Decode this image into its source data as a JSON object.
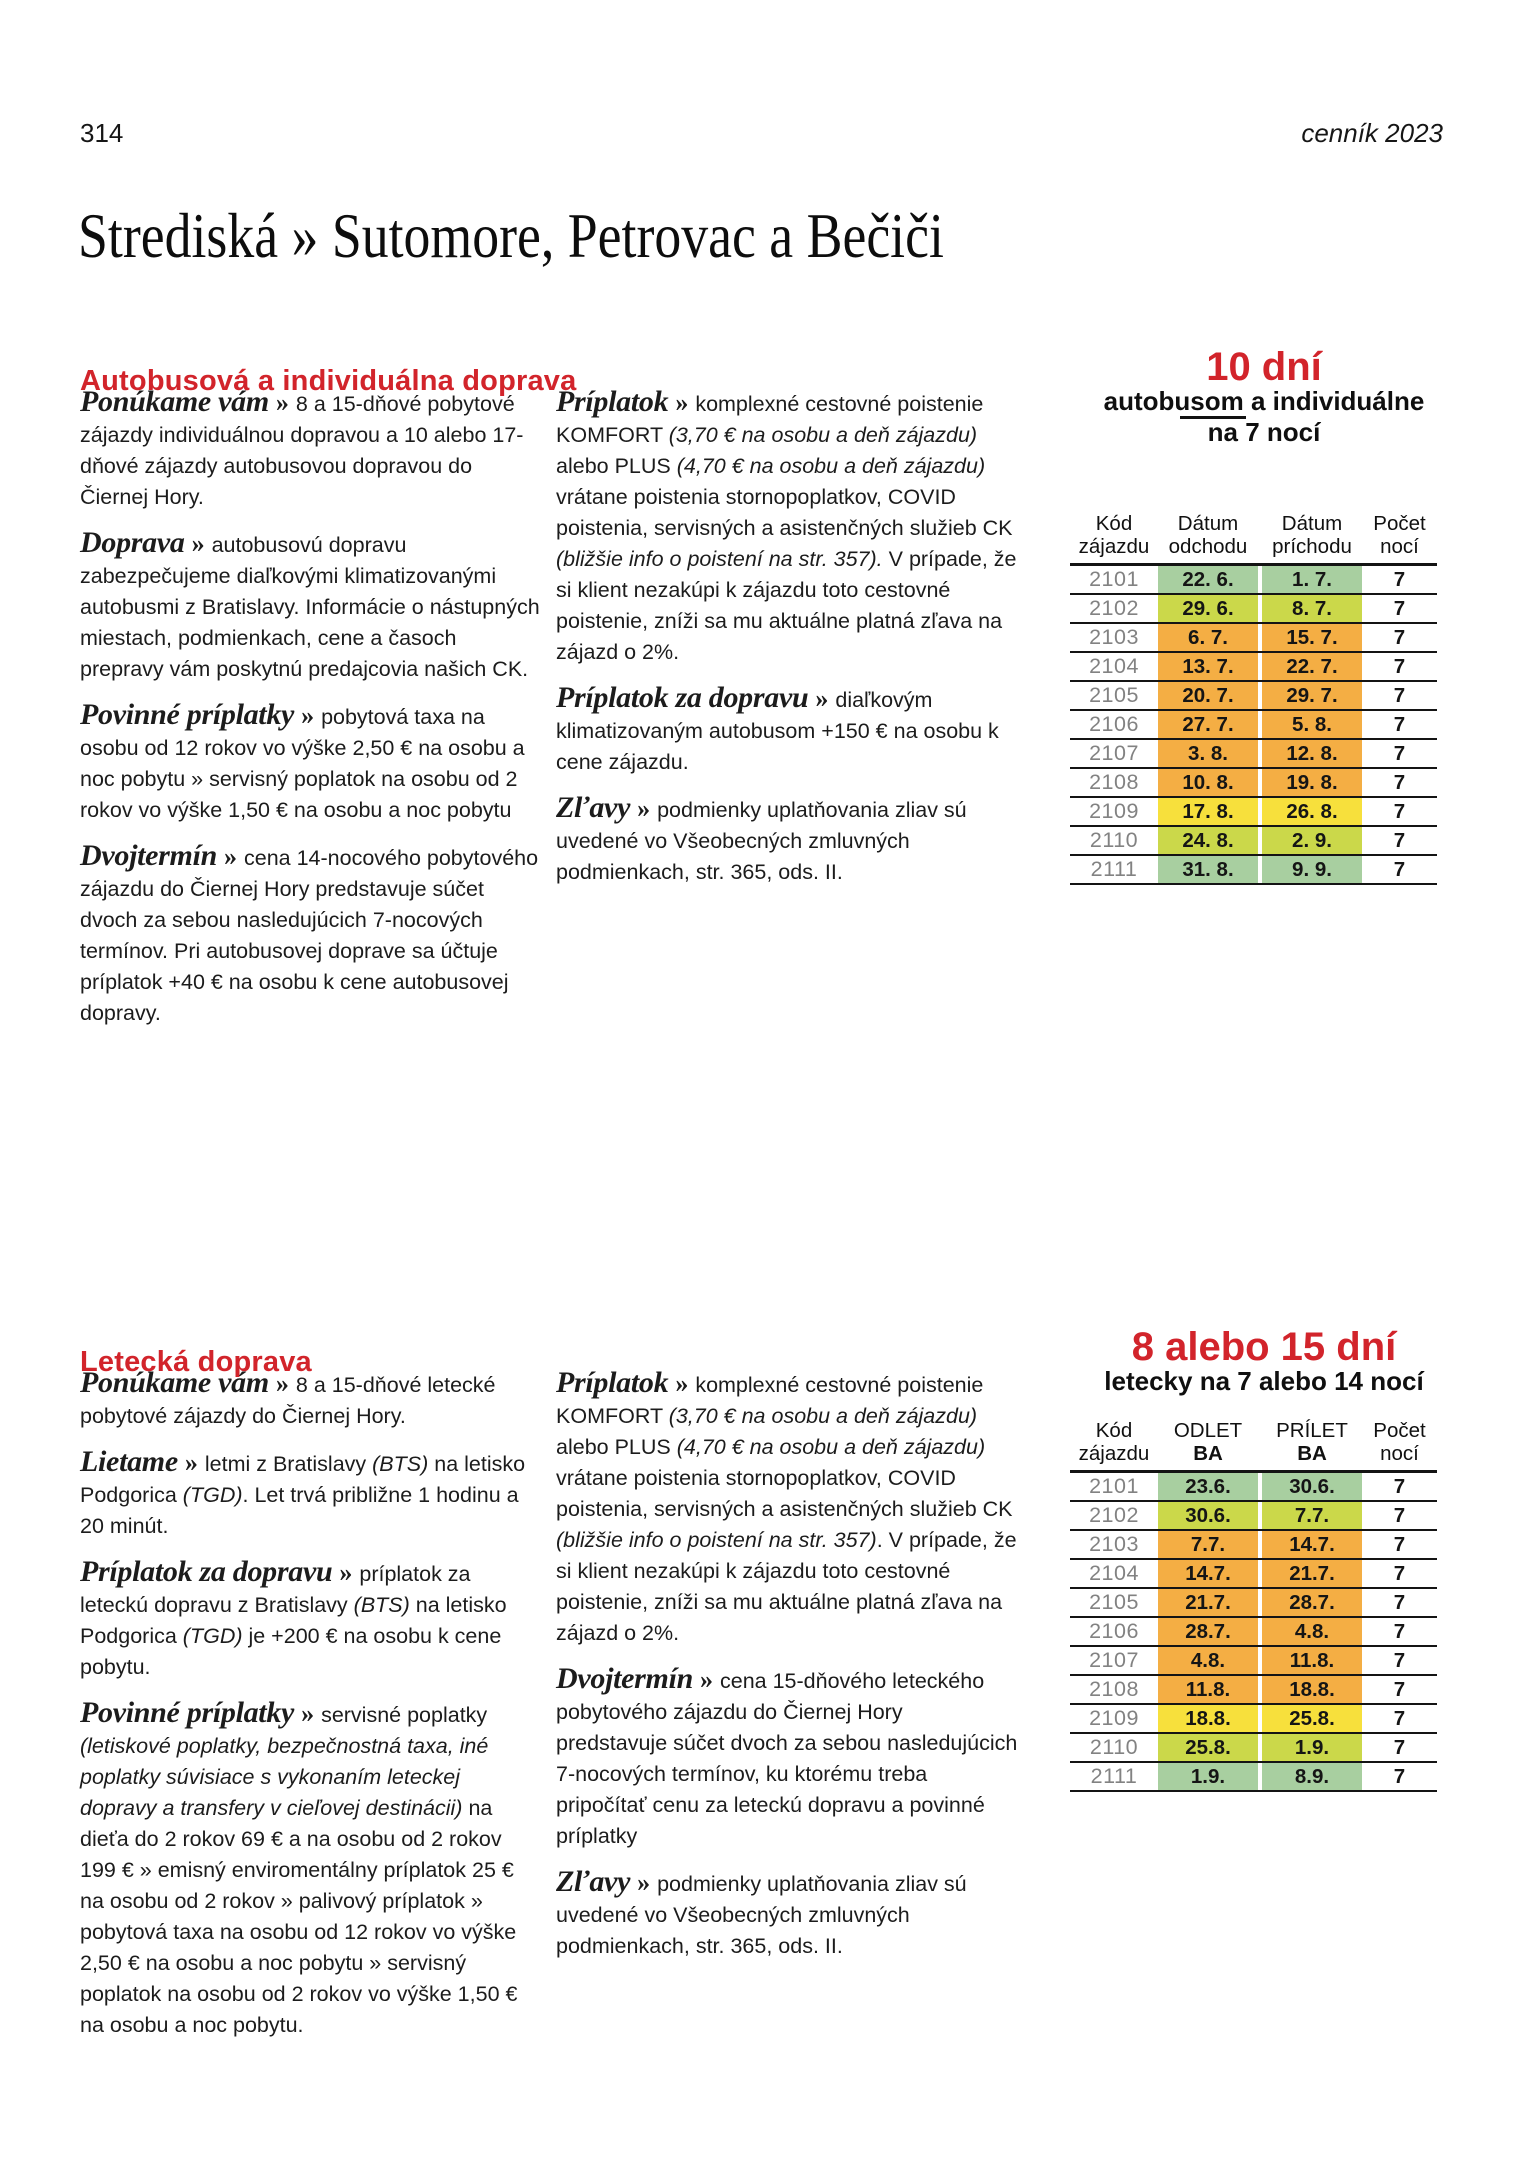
{
  "page": {
    "number": "314",
    "edition": "cenník 2023",
    "title": "Strediská » Sutomore, Petrovac a Bečiči"
  },
  "colors": {
    "red": "#d2242b",
    "green": "#a8cfa0",
    "lime": "#cbd84a",
    "orange": "#f4ae44",
    "yellow": "#f7e03c"
  },
  "sections": [
    {
      "heading": "Autobusová a individuálna doprava",
      "columns": [
        [
          {
            "head": "Ponúkame vám",
            "body": [
              {
                "t": "8 a 15-dňové pobytové zájazdy individuálnou dopravou a 10 alebo 17-dňové zájazdy autobusovou dopravou do Čiernej Hory.",
                "i": false
              }
            ]
          },
          {
            "head": "Doprava",
            "body": [
              {
                "t": "autobusovú dopravu zabezpečujeme diaľkovými klimatizovanými autobusmi z Bratislavy. Informácie o nástupných miestach, podmienkach, cene a časoch prepravy vám poskytnú predajcovia našich CK.",
                "i": false
              }
            ]
          },
          {
            "head": "Povinné príplatky",
            "body": [
              {
                "t": "pobytová taxa na osobu od 12 rokov vo výške 2,50 € na osobu a noc pobytu » servisný poplatok na osobu od 2 rokov vo výške 1,50 € na osobu a noc pobytu",
                "i": false
              }
            ]
          },
          {
            "head": "Dvojtermín",
            "body": [
              {
                "t": "cena 14-nocového pobytového zájazdu do Čiernej Hory predstavuje súčet dvoch za sebou nasledujúcich 7-nocových termínov. Pri autobusovej doprave sa účtuje príplatok +40 € na osobu k cene autobusovej dopravy.",
                "i": false
              }
            ]
          }
        ],
        [
          {
            "head": "Príplatok",
            "body": [
              {
                "t": "komplexné cestovné poistenie KOMFORT ",
                "i": false
              },
              {
                "t": "(3,70 € na osobu a deň zájazdu)",
                "i": true
              },
              {
                "t": " alebo PLUS ",
                "i": false
              },
              {
                "t": "(4,70 € na osobu a deň zájazdu)",
                "i": true
              },
              {
                "t": " vrátane poistenia stornopoplatkov, COVID poistenia, servisných a asistenčných služieb CK ",
                "i": false
              },
              {
                "t": "(bližšie info o poistení na str. 357).",
                "i": true
              },
              {
                "t": " V prípade, že si klient nezakúpi k zájazdu toto cestovné poistenie, zníži sa mu aktuálne platná zľava na zájazd o 2%.",
                "i": false
              }
            ]
          },
          {
            "head": "Príplatok za dopravu",
            "body": [
              {
                "t": "diaľkovým klimatizovaným autobusom +150 € na osobu k cene zájazdu.",
                "i": false
              }
            ]
          },
          {
            "head": "Zľavy",
            "body": [
              {
                "t": "podmienky uplatňovania zliav sú uvedené vo Všeobecných zmluvných podmienkach, str. 365, ods. II.",
                "i": false
              }
            ]
          }
        ]
      ],
      "panel": {
        "title": "10 dní",
        "subtitle_lines": [
          "autobusom a individuálne",
          "na 7 nocí"
        ],
        "table": {
          "headers": [
            {
              "l1": "Kód",
              "l2": "zájazdu",
              "b2": false
            },
            {
              "l1": "Dátum",
              "l2": "odchodu",
              "b2": false
            },
            {
              "l1": "Dátum",
              "l2": "príchodu",
              "b2": false
            },
            {
              "l1": "Počet",
              "l2": "nocí",
              "b2": false
            }
          ],
          "rows": [
            {
              "code": "2101",
              "dep": "22. 6.",
              "arr": "1. 7.",
              "nights": "7",
              "color": "green"
            },
            {
              "code": "2102",
              "dep": "29. 6.",
              "arr": "8. 7.",
              "nights": "7",
              "color": "lime"
            },
            {
              "code": "2103",
              "dep": "6. 7.",
              "arr": "15. 7.",
              "nights": "7",
              "color": "orange"
            },
            {
              "code": "2104",
              "dep": "13. 7.",
              "arr": "22. 7.",
              "nights": "7",
              "color": "orange"
            },
            {
              "code": "2105",
              "dep": "20. 7.",
              "arr": "29. 7.",
              "nights": "7",
              "color": "orange"
            },
            {
              "code": "2106",
              "dep": "27. 7.",
              "arr": "5. 8.",
              "nights": "7",
              "color": "orange"
            },
            {
              "code": "2107",
              "dep": "3. 8.",
              "arr": "12. 8.",
              "nights": "7",
              "color": "orange"
            },
            {
              "code": "2108",
              "dep": "10. 8.",
              "arr": "19. 8.",
              "nights": "7",
              "color": "orange"
            },
            {
              "code": "2109",
              "dep": "17. 8.",
              "arr": "26. 8.",
              "nights": "7",
              "color": "yellow"
            },
            {
              "code": "2110",
              "dep": "24. 8.",
              "arr": "2. 9.",
              "nights": "7",
              "color": "lime"
            },
            {
              "code": "2111",
              "dep": "31. 8.",
              "arr": "9. 9.",
              "nights": "7",
              "color": "green"
            }
          ]
        }
      }
    },
    {
      "heading": "Letecká doprava",
      "columns": [
        [
          {
            "head": "Ponúkame vám",
            "body": [
              {
                "t": "8 a 15-dňové letecké pobytové zájazdy do Čiernej Hory.",
                "i": false
              }
            ]
          },
          {
            "head": "Lietame",
            "body": [
              {
                "t": "letmi z Bratislavy ",
                "i": false
              },
              {
                "t": "(BTS)",
                "i": true
              },
              {
                "t": " na letisko Podgorica ",
                "i": false
              },
              {
                "t": "(TGD)",
                "i": true
              },
              {
                "t": ". Let trvá približne 1 hodinu a 20 minút.",
                "i": false
              }
            ]
          },
          {
            "head": "Príplatok za dopravu",
            "body": [
              {
                "t": "príplatok za leteckú dopravu z Bratislavy ",
                "i": false
              },
              {
                "t": "(BTS)",
                "i": true
              },
              {
                "t": " na letisko Podgorica ",
                "i": false
              },
              {
                "t": "(TGD)",
                "i": true
              },
              {
                "t": " je +200 € na osobu k cene pobytu.",
                "i": false
              }
            ]
          },
          {
            "head": "Povinné príplatky",
            "body": [
              {
                "t": "servisné poplatky ",
                "i": false
              },
              {
                "t": "(letiskové poplatky, bezpečnostná taxa, iné poplatky súvisiace s vykonaním leteckej dopravy a transfery v cieľovej destinácii)",
                "i": true
              },
              {
                "t": " na dieťa do 2 rokov 69 € a na osobu od 2 rokov 199 € » emisný enviromentálny príplatok 25 € na osobu od 2 rokov » palivový príplatok » pobytová taxa na osobu od 12 rokov vo výške 2,50 € na osobu a noc pobytu » servisný poplatok na osobu od 2 rokov vo výške 1,50 € na osobu a noc pobytu.",
                "i": false
              }
            ]
          }
        ],
        [
          {
            "head": "Príplatok",
            "body": [
              {
                "t": "komplexné cestovné poistenie KOMFORT ",
                "i": false
              },
              {
                "t": "(3,70 € na osobu a deň zájazdu)",
                "i": true
              },
              {
                "t": " alebo PLUS ",
                "i": false
              },
              {
                "t": "(4,70 € na osobu a deň zájazdu)",
                "i": true
              },
              {
                "t": " vrátane poistenia stornopoplatkov, COVID poistenia, servisných a asistenčných služieb CK ",
                "i": false
              },
              {
                "t": "(bližšie info o poistení na str. 357)",
                "i": true
              },
              {
                "t": ". V prípade, že si klient nezakúpi k zájazdu toto cestovné poistenie, zníži sa mu aktuálne platná zľava na zájazd o 2%.",
                "i": false
              }
            ]
          },
          {
            "head": "Dvojtermín",
            "body": [
              {
                "t": "cena 15-dňového leteckého pobytového zájazdu do Čiernej Hory predstavuje súčet dvoch za sebou nasledujúcich 7-nocových termínov, ku ktorému treba pripočítať cenu za leteckú dopravu a povinné príplatky",
                "i": false
              }
            ]
          },
          {
            "head": "Zľavy",
            "body": [
              {
                "t": "podmienky uplatňovania zliav sú uvedené vo Všeobecných zmluvných podmienkach, str. 365, ods. II.",
                "i": false
              }
            ]
          }
        ]
      ],
      "panel": {
        "title": "8 alebo 15 dní",
        "subtitle_lines": [
          "letecky na 7 alebo 14 nocí"
        ],
        "table": {
          "headers": [
            {
              "l1": "Kód",
              "l2": "zájazdu",
              "b2": false
            },
            {
              "l1": "ODLET",
              "l2": "BA",
              "b2": true
            },
            {
              "l1": "PRÍLET",
              "l2": "BA",
              "b2": true
            },
            {
              "l1": "Počet",
              "l2": "nocí",
              "b2": false
            }
          ],
          "rows": [
            {
              "code": "2101",
              "dep": "23.6.",
              "arr": "30.6.",
              "nights": "7",
              "color": "green"
            },
            {
              "code": "2102",
              "dep": "30.6.",
              "arr": "7.7.",
              "nights": "7",
              "color": "lime"
            },
            {
              "code": "2103",
              "dep": "7.7.",
              "arr": "14.7.",
              "nights": "7",
              "color": "orange"
            },
            {
              "code": "2104",
              "dep": "14.7.",
              "arr": "21.7.",
              "nights": "7",
              "color": "orange"
            },
            {
              "code": "2105",
              "dep": "21.7.",
              "arr": "28.7.",
              "nights": "7",
              "color": "orange"
            },
            {
              "code": "2106",
              "dep": "28.7.",
              "arr": "4.8.",
              "nights": "7",
              "color": "orange"
            },
            {
              "code": "2107",
              "dep": "4.8.",
              "arr": "11.8.",
              "nights": "7",
              "color": "orange"
            },
            {
              "code": "2108",
              "dep": "11.8.",
              "arr": "18.8.",
              "nights": "7",
              "color": "orange"
            },
            {
              "code": "2109",
              "dep": "18.8.",
              "arr": "25.8.",
              "nights": "7",
              "color": "yellow"
            },
            {
              "code": "2110",
              "dep": "25.8.",
              "arr": "1.9.",
              "nights": "7",
              "color": "lime"
            },
            {
              "code": "2111",
              "dep": "1.9.",
              "arr": "8.9.",
              "nights": "7",
              "color": "green"
            }
          ]
        }
      }
    }
  ]
}
